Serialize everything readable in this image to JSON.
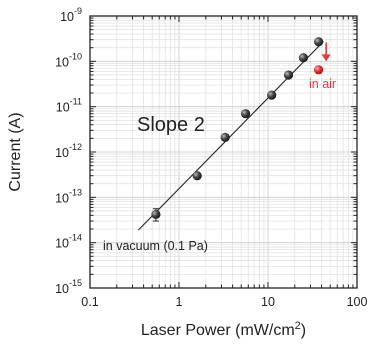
{
  "chart_data": {
    "type": "scatter",
    "title": "",
    "xlabel": "Laser Power (mW/cm2)",
    "xlabel_parts": {
      "text": "Laser Power (mW/cm",
      "sup": "2",
      "close": ")"
    },
    "ylabel": "Current (A)",
    "xscale": "log",
    "yscale": "log",
    "xlim": [
      0.1,
      100
    ],
    "ylim": [
      1e-15,
      1e-09
    ],
    "grid": true,
    "x_ticks": [
      {
        "value": 0.1,
        "label": "0.1"
      },
      {
        "value": 1,
        "label": "1"
      },
      {
        "value": 10,
        "label": "10"
      },
      {
        "value": 100,
        "label": "100"
      }
    ],
    "y_ticks": [
      {
        "value": 1e-15,
        "base": "10",
        "exp": "-15"
      },
      {
        "value": 1e-14,
        "base": "10",
        "exp": "-14"
      },
      {
        "value": 1e-13,
        "base": "10",
        "exp": "-13"
      },
      {
        "value": 1e-12,
        "base": "10",
        "exp": "-12"
      },
      {
        "value": 1e-11,
        "base": "10",
        "exp": "-11"
      },
      {
        "value": 1e-10,
        "base": "10",
        "exp": "-10"
      },
      {
        "value": 1e-09,
        "base": "10",
        "exp": "-9"
      }
    ],
    "series": [
      {
        "name": "in vacuum (0.1 Pa)",
        "color": "#222222",
        "points": [
          {
            "x": 0.55,
            "y": 4.2e-14,
            "yerr_low": 3e-14,
            "yerr_high": 5.6e-14
          },
          {
            "x": 1.6,
            "y": 3e-13
          },
          {
            "x": 3.3,
            "y": 2.1e-12
          },
          {
            "x": 5.6,
            "y": 7e-12
          },
          {
            "x": 11,
            "y": 1.8e-11
          },
          {
            "x": 17,
            "y": 5e-11
          },
          {
            "x": 25,
            "y": 1.2e-10
          },
          {
            "x": 37,
            "y": 2.7e-10
          }
        ]
      },
      {
        "name": "in air",
        "color": "#e8363c",
        "points": [
          {
            "x": 37,
            "y": 6.5e-11
          }
        ]
      }
    ],
    "fit_line": {
      "label": "Slope 2",
      "slope": 2,
      "x_start": 0.35,
      "x_end": 42,
      "y_at_x_start": 1.9e-14
    },
    "arrow": {
      "x": 45,
      "y_from": 2.6e-10,
      "y_to": 1e-10,
      "color": "#e8363c"
    },
    "annotations": {
      "slope_label": "Slope 2",
      "vacuum_label": "in vacuum (0.1 Pa)",
      "air_label": "in air"
    }
  }
}
